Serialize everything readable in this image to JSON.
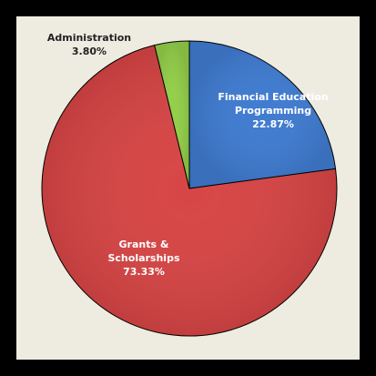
{
  "chart_data": {
    "type": "pie",
    "slices": [
      {
        "label_lines": [
          "Financial Education",
          "Programming"
        ],
        "value_text": "22.87%",
        "value": 22.87,
        "color": "#3f7bd0",
        "label_color": "#ffffff"
      },
      {
        "label_lines": [
          "Grants &",
          "Scholarships"
        ],
        "value_text": "73.33%",
        "value": 73.33,
        "color": "#d74545",
        "label_color": "#ffffff"
      },
      {
        "label_lines": [
          "Administration"
        ],
        "value_text": "3.80%",
        "value": 3.8,
        "color": "#93cf49",
        "label_color": "#222222"
      }
    ],
    "start_angle_deg": 0,
    "direction": "clockwise",
    "background": "#eeece1",
    "border_color": "#000000"
  }
}
